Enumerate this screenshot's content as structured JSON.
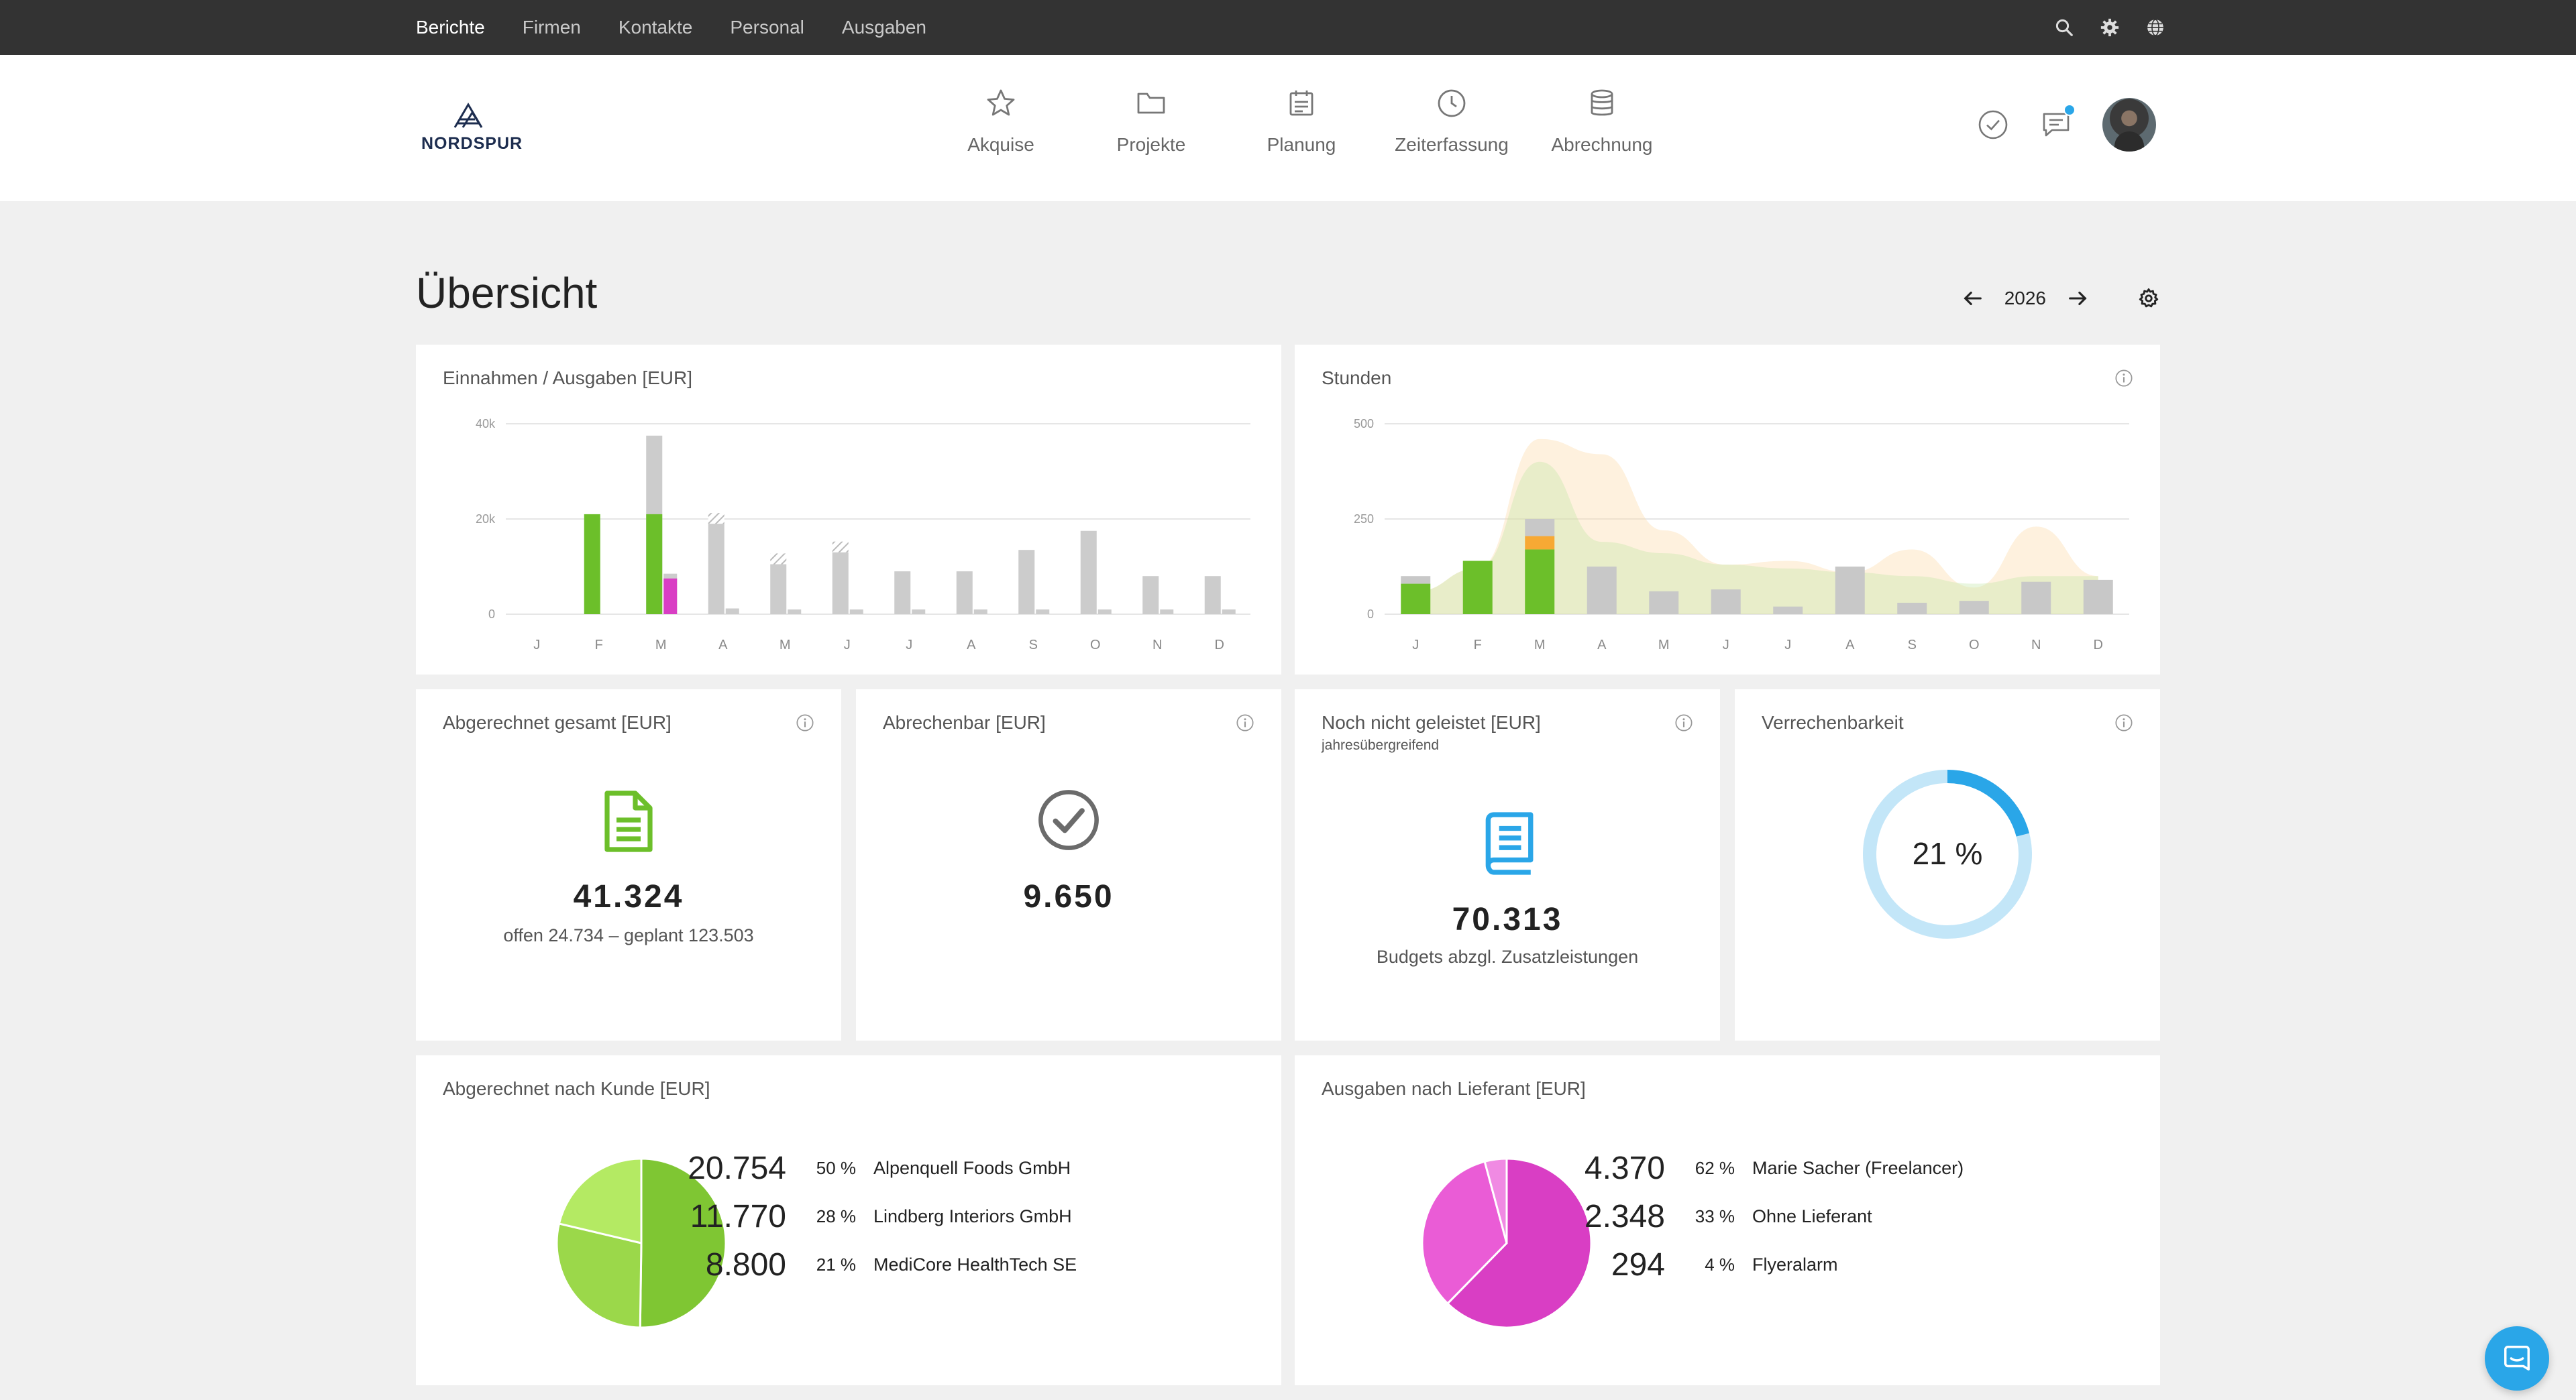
{
  "topbar": {
    "nav": [
      "Berichte",
      "Firmen",
      "Kontakte",
      "Personal",
      "Ausgaben"
    ],
    "icons": [
      "search-icon",
      "gear-icon",
      "globe-icon"
    ]
  },
  "header": {
    "logo_text": "NORDSPUR",
    "nav": [
      {
        "label": "Akquise",
        "icon": "star-icon"
      },
      {
        "label": "Projekte",
        "icon": "folder-icon"
      },
      {
        "label": "Planung",
        "icon": "calendar-icon"
      },
      {
        "label": "Zeiterfassung",
        "icon": "clock-icon"
      },
      {
        "label": "Abrechnung",
        "icon": "database-icon"
      }
    ],
    "right_icons": [
      "check-circle-icon",
      "chat-icon",
      "avatar"
    ]
  },
  "page": {
    "title": "Übersicht",
    "year": "2026"
  },
  "cards": {
    "income": {
      "title": "Einnahmen / Ausgaben [EUR]"
    },
    "hours": {
      "title": "Stunden"
    },
    "billed": {
      "title": "Abgerechnet gesamt [EUR]",
      "value": "41.324",
      "note": "offen 24.734 – geplant 123.503"
    },
    "billable": {
      "title": "Abrechenbar [EUR]",
      "value": "9.650"
    },
    "unperformed": {
      "title": "Noch nicht geleistet [EUR]",
      "subtitle": "jahresübergreifend",
      "value": "70.313",
      "note": "Budgets abzgl. Zusatzleistungen"
    },
    "billability": {
      "title": "Verrechenbarkeit",
      "value": "21 %",
      "fraction": 0.21
    },
    "by_customer": {
      "title": "Abgerechnet nach Kunde [EUR]",
      "rows": [
        {
          "value": "20.754",
          "pct": "50 %",
          "name": "Alpenquell Foods GmbH"
        },
        {
          "value": "11.770",
          "pct": "28 %",
          "name": "Lindberg Interiors GmbH"
        },
        {
          "value": "8.800",
          "pct": "21 %",
          "name": "MediCore HealthTech SE"
        }
      ]
    },
    "by_supplier": {
      "title": "Ausgaben nach Lieferant [EUR]",
      "rows": [
        {
          "value": "4.370",
          "pct": "62 %",
          "name": "Marie Sacher (Freelancer)"
        },
        {
          "value": "2.348",
          "pct": "33 %",
          "name": "Ohne Lieferant"
        },
        {
          "value": "294",
          "pct": "4 %",
          "name": "Flyeralarm"
        }
      ]
    }
  },
  "colors": {
    "green": "#6cbf2a",
    "grey": "#cccccc",
    "magenta": "#d93ec4",
    "orange": "#f7a934",
    "blue": "#2aa6e8",
    "light_blue": "#c3e6f8"
  },
  "chart_data": [
    {
      "type": "bar",
      "categories": [
        "J",
        "F",
        "M",
        "A",
        "M",
        "J",
        "J",
        "A",
        "S",
        "O",
        "N",
        "D"
      ],
      "ylim": [
        0,
        40000
      ],
      "yticks": [
        "40k",
        "20k",
        "0"
      ],
      "series": [
        {
          "values": [
            0,
            21000,
            21000,
            0,
            0,
            0,
            0,
            0,
            0,
            0,
            0,
            0
          ]
        },
        {
          "values": [
            0,
            0,
            37500,
            19000,
            10500,
            13000,
            9000,
            9000,
            13500,
            17500,
            8000,
            8000
          ]
        },
        {
          "values": [
            0,
            0,
            7500,
            0,
            0,
            0,
            0,
            0,
            0,
            0,
            0,
            0
          ]
        },
        {
          "values": [
            0,
            0,
            8500,
            1200,
            1000,
            1000,
            1000,
            1000,
            1000,
            1000,
            1000,
            1000
          ]
        }
      ],
      "grid": true
    },
    {
      "type": "bar",
      "categories": [
        "J",
        "F",
        "M",
        "A",
        "M",
        "J",
        "J",
        "A",
        "S",
        "O",
        "N",
        "D"
      ],
      "ylim": [
        0,
        500
      ],
      "yticks": [
        "500",
        "250",
        "0"
      ],
      "series": [
        {
          "values": [
            80,
            140,
            170,
            0,
            0,
            0,
            0,
            0,
            0,
            0,
            0,
            0
          ]
        },
        {
          "values": [
            0,
            0,
            35,
            0,
            0,
            0,
            0,
            0,
            0,
            0,
            0,
            0
          ]
        },
        {
          "values": [
            20,
            0,
            45,
            125,
            60,
            65,
            20,
            125,
            30,
            35,
            85,
            90
          ]
        },
        {
          "values": [
            60,
            120,
            460,
            420,
            220,
            130,
            140,
            110,
            170,
            70,
            230,
            100
          ]
        },
        {
          "values": [
            60,
            120,
            400,
            190,
            160,
            130,
            120,
            110,
            100,
            80,
            100,
            100
          ]
        }
      ],
      "grid": true
    },
    {
      "type": "pie",
      "values": [
        20754,
        11770,
        8800
      ]
    },
    {
      "type": "pie",
      "values": [
        4370,
        2348,
        294
      ]
    }
  ]
}
